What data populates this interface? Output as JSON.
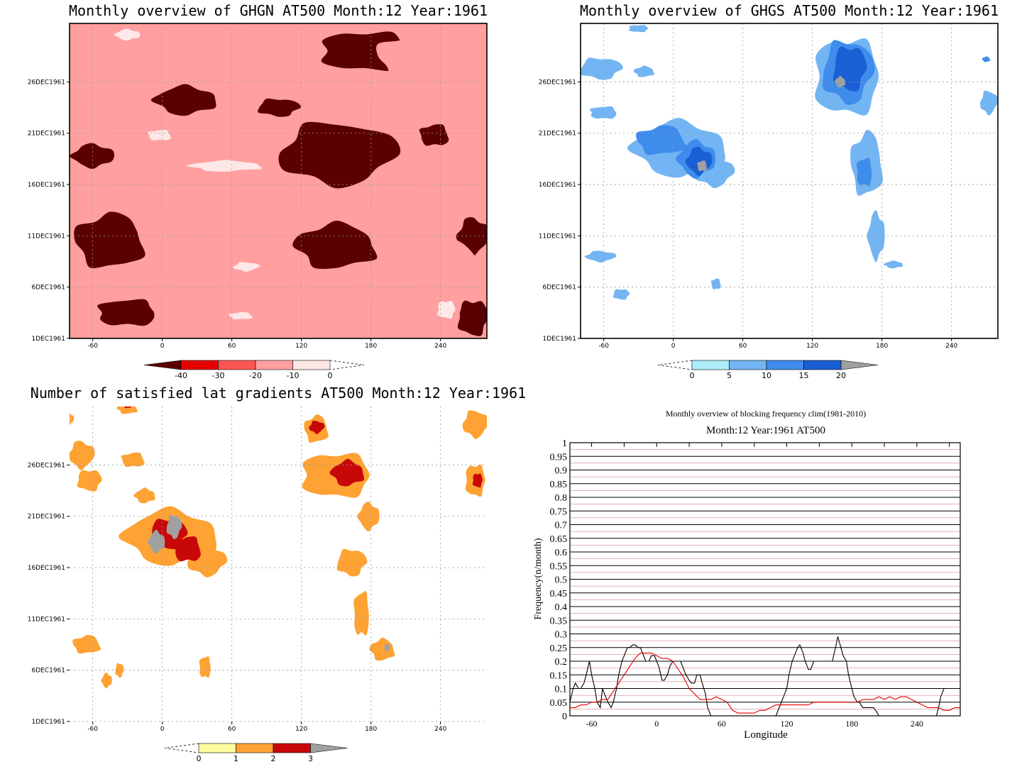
{
  "chart_data": [
    {
      "type": "heatmap",
      "title": "Monthly overview of GHGN AT500 Month:12 Year:1961",
      "x_ticks": [
        "-60",
        "0",
        "60",
        "120",
        "180",
        "240"
      ],
      "y_ticks": [
        "1DEC1961",
        "6DEC1961",
        "11DEC1961",
        "16DEC1961",
        "21DEC1961",
        "26DEC1961"
      ],
      "xlim": [
        -80,
        280
      ],
      "colorbar": {
        "ticks": [
          "-40",
          "-30",
          "-20",
          "-10",
          "0"
        ],
        "colors": [
          "#5a0000",
          "#e50000",
          "#ff5555",
          "#ff9fa0",
          "#fde7e7"
        ]
      },
      "regions": [
        {
          "level": 3,
          "x": -50,
          "y": 28,
          "rx": 35,
          "ry": 2.5
        },
        {
          "level": 3,
          "x": 40,
          "y": 28.5,
          "rx": 60,
          "ry": 2.5
        },
        {
          "level": 3,
          "x": 90,
          "y": 25,
          "rx": 50,
          "ry": 2
        },
        {
          "level": 3,
          "x": 220,
          "y": 27.5,
          "rx": 40,
          "ry": 2.5
        },
        {
          "level": 3,
          "x": -40,
          "y": 22.2,
          "rx": 30,
          "ry": 1.2
        },
        {
          "level": 3,
          "x": 20,
          "y": 18.5,
          "rx": 55,
          "ry": 2.8
        },
        {
          "level": 3,
          "x": 200,
          "y": 22.5,
          "rx": 20,
          "ry": 1.2
        },
        {
          "level": 3,
          "x": 240,
          "y": 14,
          "rx": 40,
          "ry": 2.2
        },
        {
          "level": 3,
          "x": 60,
          "y": 5.5,
          "rx": 70,
          "ry": 4.5
        },
        {
          "level": 3,
          "x": 230,
          "y": 6,
          "rx": 50,
          "ry": 4.5
        },
        {
          "level": 4,
          "x": -2,
          "y": 19.8,
          "rx": 12,
          "ry": 0.6
        },
        {
          "level": 4,
          "x": 55,
          "y": 16.8,
          "rx": 35,
          "ry": 0.6
        },
        {
          "level": 4,
          "x": 72,
          "y": 7,
          "rx": 12,
          "ry": 0.5
        },
        {
          "level": 4,
          "x": 245,
          "y": 2.8,
          "rx": 9,
          "ry": 1.0
        },
        {
          "level": 4,
          "x": 68,
          "y": 2.2,
          "rx": 12,
          "ry": 0.4
        },
        {
          "level": 4,
          "x": -30,
          "y": 29.6,
          "rx": 12,
          "ry": 0.6
        },
        {
          "level": 0,
          "x": 20,
          "y": 23.2,
          "rx": 30,
          "ry": 1.6
        },
        {
          "level": 0,
          "x": 150,
          "y": 18,
          "rx": 55,
          "ry": 3.5
        },
        {
          "level": 0,
          "x": 175,
          "y": 28,
          "rx": 45,
          "ry": 2.2
        },
        {
          "level": 0,
          "x": -45,
          "y": 9.5,
          "rx": 35,
          "ry": 3
        },
        {
          "level": 0,
          "x": -60,
          "y": 17.8,
          "rx": 20,
          "ry": 1.3
        },
        {
          "level": 0,
          "x": 100,
          "y": 22.5,
          "rx": 20,
          "ry": 1
        },
        {
          "level": 0,
          "x": -30,
          "y": 2.5,
          "rx": 30,
          "ry": 1.5
        },
        {
          "level": 0,
          "x": 150,
          "y": 9,
          "rx": 40,
          "ry": 2.5
        },
        {
          "level": 0,
          "x": 268,
          "y": 10,
          "rx": 15,
          "ry": 2
        },
        {
          "level": 0,
          "x": 268,
          "y": 2,
          "rx": 15,
          "ry": 2
        },
        {
          "level": 0,
          "x": 235,
          "y": 19.8,
          "rx": 15,
          "ry": 1.2
        }
      ]
    },
    {
      "type": "heatmap",
      "title": "Monthly overview of GHGS AT500 Month:12 Year:1961",
      "x_ticks": [
        "-60",
        "0",
        "60",
        "120",
        "180",
        "240"
      ],
      "y_ticks": [
        "1DEC1961",
        "6DEC1961",
        "11DEC1961",
        "16DEC1961",
        "21DEC1961",
        "26DEC1961"
      ],
      "xlim": [
        -80,
        280
      ],
      "colorbar": {
        "ticks": [
          "0",
          "5",
          "10",
          "15",
          "20"
        ],
        "colors": [
          "#aeeefb",
          "#73b5f2",
          "#3e8cec",
          "#1a5fd4",
          "#a0a0a0"
        ]
      },
      "regions": [
        {
          "level": 1,
          "x": 5,
          "y": 18.5,
          "rx": 45,
          "ry": 3
        },
        {
          "level": 1,
          "x": 35,
          "y": 16.2,
          "rx": 18,
          "ry": 1.6
        },
        {
          "level": 2,
          "x": -10,
          "y": 19.3,
          "rx": 25,
          "ry": 1.6
        },
        {
          "level": 2,
          "x": 20,
          "y": 17.5,
          "rx": 18,
          "ry": 2
        },
        {
          "level": 3,
          "x": 22,
          "y": 17.3,
          "rx": 12,
          "ry": 1.5
        },
        {
          "level": 4,
          "x": 25,
          "y": 16.8,
          "rx": 5,
          "ry": 0.6
        },
        {
          "level": 1,
          "x": 150,
          "y": 25.5,
          "rx": 33,
          "ry": 4.3
        },
        {
          "level": 2,
          "x": 150,
          "y": 26,
          "rx": 24,
          "ry": 3.5
        },
        {
          "level": 3,
          "x": 152,
          "y": 26.3,
          "rx": 16,
          "ry": 2.5
        },
        {
          "level": 4,
          "x": 144,
          "y": 25,
          "rx": 5,
          "ry": 0.6
        },
        {
          "level": 1,
          "x": 167,
          "y": 17,
          "rx": 16,
          "ry": 3.5
        },
        {
          "level": 2,
          "x": 165,
          "y": 16.2,
          "rx": 8,
          "ry": 1.6
        },
        {
          "level": 1,
          "x": 175,
          "y": 10,
          "rx": 8,
          "ry": 2.6
        },
        {
          "level": 1,
          "x": -63,
          "y": 26.3,
          "rx": 20,
          "ry": 1.2
        },
        {
          "level": 1,
          "x": -60,
          "y": 22,
          "rx": 14,
          "ry": 0.7
        },
        {
          "level": 1,
          "x": -25,
          "y": 26,
          "rx": 10,
          "ry": 0.6
        },
        {
          "level": 1,
          "x": -63,
          "y": 8,
          "rx": 14,
          "ry": 0.6
        },
        {
          "level": 1,
          "x": -45,
          "y": 4.3,
          "rx": 8,
          "ry": 0.6
        },
        {
          "level": 1,
          "x": 37,
          "y": 5.3,
          "rx": 5,
          "ry": 0.6
        },
        {
          "level": 1,
          "x": 190,
          "y": 7.2,
          "rx": 9,
          "ry": 0.4
        },
        {
          "level": 1,
          "x": 272,
          "y": 23,
          "rx": 8,
          "ry": 1.3
        },
        {
          "level": 1,
          "x": -30,
          "y": 30.2,
          "rx": 10,
          "ry": 0.4
        },
        {
          "level": 2,
          "x": 270,
          "y": 27.2,
          "rx": 4,
          "ry": 0.3
        }
      ]
    },
    {
      "type": "heatmap",
      "title": "Number of satisfied lat gradients AT500 Month:12 Year:1961",
      "x_ticks": [
        "-60",
        "0",
        "60",
        "120",
        "180",
        "240"
      ],
      "y_ticks": [
        "1DEC1961",
        "6DEC1961",
        "11DEC1961",
        "16DEC1961",
        "21DEC1961",
        "26DEC1961"
      ],
      "xlim": [
        -80,
        280
      ],
      "colorbar": {
        "ticks": [
          "0",
          "1",
          "2",
          "3"
        ],
        "colors": [
          "#fdfd9e",
          "#fea234",
          "#c80808",
          "#a0a0a0"
        ]
      },
      "regions": [
        {
          "level": 1,
          "x": 7,
          "y": 18,
          "rx": 45,
          "ry": 3
        },
        {
          "level": 1,
          "x": 38,
          "y": 15.6,
          "rx": 18,
          "ry": 1.6
        },
        {
          "level": 2,
          "x": 5,
          "y": 18.3,
          "rx": 18,
          "ry": 1.7
        },
        {
          "level": 2,
          "x": 22,
          "y": 16.8,
          "rx": 14,
          "ry": 1.4
        },
        {
          "level": 3,
          "x": -5,
          "y": 17.5,
          "rx": 8,
          "ry": 1.2
        },
        {
          "level": 3,
          "x": 10,
          "y": 19,
          "rx": 7,
          "ry": 1.3
        },
        {
          "level": 1,
          "x": 150,
          "y": 24,
          "rx": 35,
          "ry": 2.5
        },
        {
          "level": 2,
          "x": 160,
          "y": 24.2,
          "rx": 16,
          "ry": 1.4
        },
        {
          "level": 1,
          "x": 133,
          "y": 28.5,
          "rx": 12,
          "ry": 1.5
        },
        {
          "level": 2,
          "x": 133,
          "y": 28.7,
          "rx": 7,
          "ry": 0.7
        },
        {
          "level": 1,
          "x": 178,
          "y": 20,
          "rx": 10,
          "ry": 1.5
        },
        {
          "level": 1,
          "x": 163,
          "y": 15.5,
          "rx": 14,
          "ry": 1.5
        },
        {
          "level": 1,
          "x": 172,
          "y": 10.5,
          "rx": 8,
          "ry": 2.5
        },
        {
          "level": 1,
          "x": 190,
          "y": 7,
          "rx": 12,
          "ry": 1.2
        },
        {
          "level": 3,
          "x": 194,
          "y": 7.2,
          "rx": 3,
          "ry": 0.4
        },
        {
          "level": 1,
          "x": -70,
          "y": 26,
          "rx": 12,
          "ry": 1.5
        },
        {
          "level": 1,
          "x": -63,
          "y": 23.5,
          "rx": 12,
          "ry": 1.2
        },
        {
          "level": 1,
          "x": -25,
          "y": 25.5,
          "rx": 12,
          "ry": 0.8
        },
        {
          "level": 1,
          "x": -15,
          "y": 22,
          "rx": 10,
          "ry": 0.8
        },
        {
          "level": 1,
          "x": 270,
          "y": 29,
          "rx": 12,
          "ry": 1.5
        },
        {
          "level": 1,
          "x": 270,
          "y": 23.5,
          "rx": 10,
          "ry": 1.8
        },
        {
          "level": 2,
          "x": 272,
          "y": 23.5,
          "rx": 5,
          "ry": 0.8
        },
        {
          "level": 1,
          "x": -65,
          "y": 7.5,
          "rx": 14,
          "ry": 1
        },
        {
          "level": 1,
          "x": -48,
          "y": 4,
          "rx": 5,
          "ry": 0.8
        },
        {
          "level": 1,
          "x": -37,
          "y": 5,
          "rx": 4,
          "ry": 0.8
        },
        {
          "level": 1,
          "x": 37,
          "y": 5.3,
          "rx": 6,
          "ry": 1.2
        },
        {
          "level": 1,
          "x": -30,
          "y": 30.5,
          "rx": 10,
          "ry": 0.6
        },
        {
          "level": 2,
          "x": -30,
          "y": 30.8,
          "rx": 4,
          "ry": 0.3
        },
        {
          "level": 1,
          "x": -80,
          "y": 29.5,
          "rx": 4,
          "ry": 0.6
        }
      ]
    },
    {
      "type": "line",
      "title": "Monthly overview of blocking frequency clim(1981-2010)",
      "subtitle": "Month:12 Year:1961  AT500",
      "xlabel": "Longitude",
      "ylabel": "Frequency(n/month)",
      "xlim": [
        -80,
        280
      ],
      "ylim": [
        0,
        1
      ],
      "x_ticks": [
        "-60",
        "0",
        "60",
        "120",
        "180",
        "240"
      ],
      "y_ticks": [
        "0",
        "0.05",
        "0.1",
        "0.15",
        "0.2",
        "0.25",
        "0.3",
        "0.35",
        "0.4",
        "0.45",
        "0.5",
        "0.55",
        "0.6",
        "0.65",
        "0.7",
        "0.75",
        "0.8",
        "0.85",
        "0.9",
        "0.95",
        "1"
      ],
      "grid": true,
      "series": [
        {
          "color": "#000000",
          "x": [
            -80,
            -77,
            -75,
            -72,
            -70,
            -67,
            -65,
            -62,
            -60,
            -57,
            -55,
            -52,
            -50,
            -47,
            -45,
            -42,
            -40,
            -37,
            -35,
            -32,
            -30,
            -27,
            -25,
            -22,
            -20,
            -17,
            -15,
            -12,
            -10,
            -7,
            -5,
            -2,
            0,
            2,
            5,
            7,
            10,
            12,
            15,
            17,
            20,
            22,
            25,
            27,
            30,
            32,
            35,
            37,
            40,
            42,
            45,
            47,
            50,
            75,
            80,
            85,
            88,
            92,
            97,
            100,
            105,
            110,
            115,
            120,
            122,
            125,
            127,
            130,
            132,
            135,
            137,
            140,
            142,
            145,
            147,
            150,
            152,
            155,
            157,
            160,
            162,
            165,
            167,
            170,
            172,
            175,
            177,
            180,
            182,
            185,
            187,
            190,
            192,
            195,
            197,
            200,
            202,
            205,
            210,
            220,
            230,
            240,
            250,
            258,
            260,
            262,
            265,
            270,
            275,
            280
          ],
          "y": [
            0.05,
            0.1,
            0.12,
            0.1,
            0.1,
            0.12,
            0.15,
            0.2,
            0.15,
            0.1,
            0.05,
            0.03,
            0.1,
            0.07,
            0.05,
            0.03,
            0.05,
            0.1,
            0.15,
            0.2,
            0.22,
            0.25,
            0.25,
            0.26,
            0.26,
            0.25,
            0.25,
            0.22,
            0.2,
            0.2,
            0.22,
            0.22,
            0.2,
            0.18,
            0.13,
            0.13,
            0.15,
            0.18,
            0.2,
            0.2,
            0.2,
            0.2,
            0.17,
            0.15,
            0.13,
            0.12,
            0.12,
            0.15,
            0.15,
            0.12,
            0.08,
            0.03,
            0.0,
            0.0,
            0.0,
            0.0,
            0.0,
            0.0,
            0.0,
            0.0,
            0.0,
            0.0,
            0.05,
            0.1,
            0.15,
            0.2,
            0.22,
            0.25,
            0.26,
            0.23,
            0.2,
            0.17,
            0.17,
            0.2,
            0.2,
            0.2,
            0.2,
            0.2,
            0.2,
            0.2,
            0.2,
            0.25,
            0.29,
            0.25,
            0.22,
            0.2,
            0.15,
            0.1,
            0.07,
            0.05,
            0.05,
            0.03,
            0.03,
            0.03,
            0.03,
            0.03,
            0.02,
            0.0,
            0.0,
            0.0,
            0.0,
            0.0,
            0.0,
            0.0,
            0.03,
            0.07,
            0.1,
            0.1,
            0.1,
            0.1
          ]
        },
        {
          "color": "#e00000",
          "x": [
            -80,
            -75,
            -70,
            -65,
            -60,
            -55,
            -50,
            -45,
            -40,
            -35,
            -30,
            -25,
            -20,
            -15,
            -10,
            -5,
            0,
            5,
            10,
            15,
            20,
            25,
            30,
            35,
            40,
            45,
            50,
            55,
            60,
            65,
            70,
            75,
            80,
            85,
            90,
            95,
            100,
            105,
            110,
            115,
            120,
            125,
            130,
            135,
            140,
            145,
            150,
            155,
            160,
            165,
            170,
            175,
            180,
            185,
            190,
            195,
            200,
            205,
            210,
            215,
            220,
            225,
            230,
            235,
            240,
            245,
            250,
            255,
            260,
            265,
            270,
            275,
            280
          ],
          "y": [
            0.03,
            0.03,
            0.04,
            0.04,
            0.05,
            0.05,
            0.06,
            0.06,
            0.09,
            0.12,
            0.15,
            0.18,
            0.21,
            0.23,
            0.23,
            0.23,
            0.22,
            0.21,
            0.21,
            0.2,
            0.17,
            0.14,
            0.1,
            0.08,
            0.06,
            0.06,
            0.06,
            0.07,
            0.06,
            0.05,
            0.02,
            0.01,
            0.01,
            0.01,
            0.01,
            0.02,
            0.02,
            0.03,
            0.04,
            0.04,
            0.04,
            0.04,
            0.04,
            0.04,
            0.04,
            0.05,
            0.05,
            0.05,
            0.05,
            0.05,
            0.05,
            0.05,
            0.05,
            0.05,
            0.06,
            0.06,
            0.06,
            0.07,
            0.06,
            0.07,
            0.06,
            0.07,
            0.07,
            0.06,
            0.05,
            0.04,
            0.03,
            0.03,
            0.03,
            0.02,
            0.02,
            0.03,
            0.03
          ]
        }
      ]
    }
  ]
}
